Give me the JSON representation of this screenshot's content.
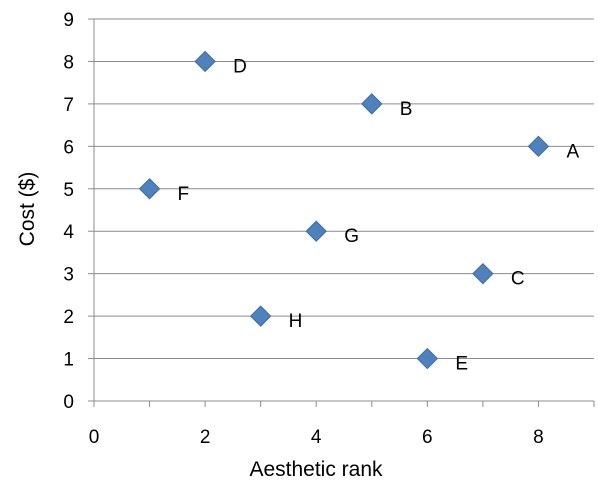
{
  "chart_data": {
    "type": "scatter",
    "title": "",
    "xlabel": "Aesthetic rank",
    "ylabel": "Cost ($)",
    "xlim": [
      0,
      9
    ],
    "ylim": [
      0,
      9
    ],
    "xticks": [
      0,
      2,
      4,
      6,
      8
    ],
    "yticks": [
      0,
      1,
      2,
      3,
      4,
      5,
      6,
      7,
      8,
      9
    ],
    "grid": "horizontal",
    "legend": "none",
    "marker": "diamond",
    "marker_color": "#4F81BD",
    "points": [
      {
        "label": "A",
        "x": 8,
        "y": 6
      },
      {
        "label": "B",
        "x": 5,
        "y": 7
      },
      {
        "label": "C",
        "x": 7,
        "y": 3
      },
      {
        "label": "D",
        "x": 2,
        "y": 8
      },
      {
        "label": "E",
        "x": 6,
        "y": 1
      },
      {
        "label": "F",
        "x": 1,
        "y": 5
      },
      {
        "label": "G",
        "x": 4,
        "y": 4
      },
      {
        "label": "H",
        "x": 3,
        "y": 2
      }
    ]
  }
}
